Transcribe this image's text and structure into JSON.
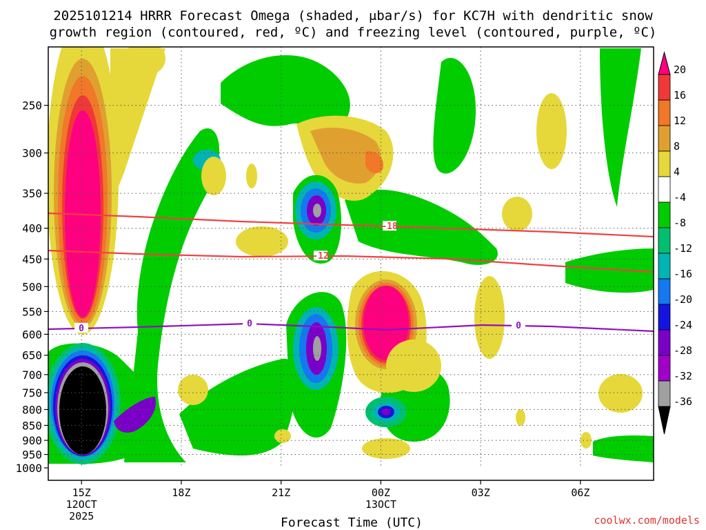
{
  "title": {
    "line1": "2025101214 HRRR Forecast Omega (shaded, μbar/s) for KC7H with dendritic snow",
    "line2": "growth region (contoured, red, ºC) and freezing level (contoured, purple, ºC)"
  },
  "footer": {
    "credit": "coolwx.com/models"
  },
  "chart_data": {
    "type": "contour",
    "variable": "omega",
    "units": "μbar/s",
    "xlabel": "Forecast Time (UTC)",
    "x_ticks": [
      {
        "label": "15Z",
        "sub": [
          "12OCT",
          "2025"
        ],
        "hour": 0
      },
      {
        "label": "18Z",
        "sub": [],
        "hour": 3
      },
      {
        "label": "21Z",
        "sub": [],
        "hour": 6
      },
      {
        "label": "00Z",
        "sub": [
          "13OCT"
        ],
        "hour": 9
      },
      {
        "label": "03Z",
        "sub": [],
        "hour": 12
      },
      {
        "label": "06Z",
        "sub": [],
        "hour": 15
      }
    ],
    "xlim": [
      -1,
      17.2
    ],
    "ylabel": "",
    "y_ticks": [
      250,
      300,
      350,
      400,
      450,
      500,
      550,
      600,
      650,
      700,
      750,
      800,
      850,
      900,
      950,
      1000
    ],
    "ylim": [
      1000,
      200
    ],
    "grid": true,
    "colorbar": {
      "levels": [
        "20",
        "16",
        "12",
        "8",
        "4",
        "-4",
        "-8",
        "-12",
        "-16",
        "-20",
        "-24",
        "-28",
        "-32",
        "-36"
      ],
      "colors": [
        "#ff0080",
        "#f03838",
        "#f07828",
        "#e0a030",
        "#e6d83a",
        "#ffffff",
        "#00cc00",
        "#00c070",
        "#00b4b4",
        "#1478f0",
        "#1414e0",
        "#7a00c8",
        "#a000c8",
        "#a0a0a0",
        "#000000"
      ]
    },
    "isotherms": [
      {
        "label": "-18",
        "color": "#f04040",
        "x": [
          70,
          200,
          350,
          500,
          650,
          800,
          948
        ],
        "y": [
          309,
          314,
          321,
          326,
          331,
          336,
          343
        ]
      },
      {
        "label": "-12",
        "color": "#f04040",
        "x": [
          70,
          200,
          350,
          500,
          650,
          800,
          948
        ],
        "y": [
          363,
          368,
          372,
          371,
          375,
          385,
          394
        ]
      },
      {
        "label": "0",
        "color": "#9010c0",
        "x": [
          70,
          200,
          360,
          480,
          560,
          700,
          800,
          948
        ],
        "y": [
          477,
          474,
          469,
          474,
          478,
          471,
          473,
          480
        ]
      }
    ],
    "ground_color": "#a0522d"
  }
}
